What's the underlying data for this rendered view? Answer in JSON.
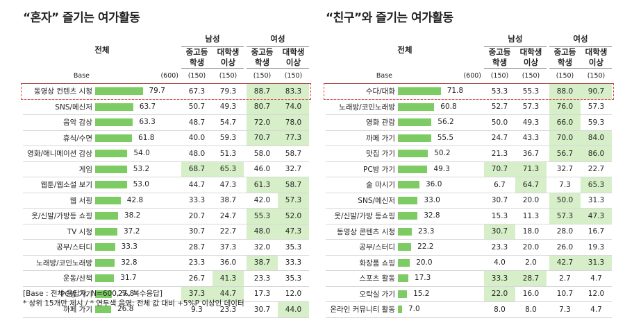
{
  "chart_data": [
    {
      "type": "table",
      "title": "“혼자” 즐기는 여가활동",
      "whole_label": "전체",
      "groups": [
        {
          "name": "남성",
          "columns": [
            "중고등\n학생",
            "대학생\n이상"
          ]
        },
        {
          "name": "여성",
          "columns": [
            "중고등\n학생",
            "대학생\n이상"
          ]
        }
      ],
      "base": {
        "label": "Base",
        "total": "(600)",
        "subs": [
          "(150)",
          "(150)",
          "(150)",
          "(150)"
        ]
      },
      "rows": [
        {
          "label": "동영상 컨텐츠 시청",
          "total": 79.7,
          "values": [
            67.3,
            79.3,
            88.7,
            83.3
          ],
          "hl": [
            false,
            false,
            true,
            true
          ]
        },
        {
          "label": "SNS/메신저",
          "total": 63.7,
          "values": [
            50.7,
            49.3,
            80.7,
            74.0
          ],
          "hl": [
            false,
            false,
            true,
            true
          ]
        },
        {
          "label": "음악 감상",
          "total": 63.3,
          "values": [
            48.7,
            54.7,
            72.0,
            78.0
          ],
          "hl": [
            false,
            false,
            true,
            true
          ]
        },
        {
          "label": "휴식/수면",
          "total": 61.8,
          "values": [
            40.0,
            59.3,
            70.7,
            77.3
          ],
          "hl": [
            false,
            false,
            true,
            true
          ]
        },
        {
          "label": "영화/애니메이션 감상",
          "total": 54.0,
          "values": [
            48.0,
            51.3,
            58.0,
            58.7
          ],
          "hl": [
            false,
            false,
            false,
            false
          ]
        },
        {
          "label": "게임",
          "total": 53.2,
          "values": [
            68.7,
            65.3,
            46.0,
            32.7
          ],
          "hl": [
            true,
            true,
            false,
            false
          ]
        },
        {
          "label": "웹툰/웹소설 보기",
          "total": 53.0,
          "values": [
            44.7,
            47.3,
            61.3,
            58.7
          ],
          "hl": [
            false,
            false,
            true,
            true
          ]
        },
        {
          "label": "웹 서핑",
          "total": 42.8,
          "values": [
            33.3,
            38.7,
            42.0,
            57.3
          ],
          "hl": [
            false,
            false,
            false,
            true
          ]
        },
        {
          "label": "옷/신발/가방등 쇼핑",
          "total": 38.2,
          "values": [
            20.7,
            24.7,
            55.3,
            52.0
          ],
          "hl": [
            false,
            false,
            true,
            true
          ]
        },
        {
          "label": "TV 시청",
          "total": 37.2,
          "values": [
            30.7,
            22.7,
            48.0,
            47.3
          ],
          "hl": [
            false,
            false,
            true,
            true
          ]
        },
        {
          "label": "공부/스터디",
          "total": 33.3,
          "values": [
            28.7,
            37.3,
            32.0,
            35.3
          ],
          "hl": [
            false,
            false,
            false,
            false
          ]
        },
        {
          "label": "노래방/코인노래방",
          "total": 32.8,
          "values": [
            23.3,
            36.0,
            38.7,
            33.3
          ],
          "hl": [
            false,
            false,
            true,
            false
          ]
        },
        {
          "label": "운동/산책",
          "total": 31.7,
          "values": [
            26.7,
            41.3,
            23.3,
            35.3
          ],
          "hl": [
            false,
            true,
            false,
            false
          ]
        },
        {
          "label": "PC방 가기",
          "total": 27.8,
          "values": [
            37.3,
            44.7,
            17.3,
            12.0
          ],
          "hl": [
            true,
            true,
            false,
            false
          ]
        },
        {
          "label": "까페 가기",
          "total": 26.8,
          "values": [
            9.3,
            23.3,
            30.7,
            44.0
          ],
          "hl": [
            false,
            false,
            false,
            true
          ]
        }
      ]
    },
    {
      "type": "table",
      "title": "“친구”와 즐기는 여가활동",
      "whole_label": "전체",
      "groups": [
        {
          "name": "남성",
          "columns": [
            "중고등\n학생",
            "대학생\n이상"
          ]
        },
        {
          "name": "여성",
          "columns": [
            "중고등\n학생",
            "대학생\n이상"
          ]
        }
      ],
      "base": {
        "label": "Base",
        "total": "(600)",
        "subs": [
          "(150)",
          "(150)",
          "(150)",
          "(150)"
        ]
      },
      "rows": [
        {
          "label": "수다/대화",
          "total": 71.8,
          "values": [
            53.3,
            55.3,
            88.0,
            90.7
          ],
          "hl": [
            false,
            false,
            true,
            true
          ]
        },
        {
          "label": "노래방/코인노래방",
          "total": 60.8,
          "values": [
            52.7,
            57.3,
            76.0,
            57.3
          ],
          "hl": [
            false,
            false,
            true,
            false
          ]
        },
        {
          "label": "영화 관람",
          "total": 56.2,
          "values": [
            50.0,
            49.3,
            66.0,
            59.3
          ],
          "hl": [
            false,
            false,
            true,
            false
          ]
        },
        {
          "label": "까페 가기",
          "total": 55.5,
          "values": [
            24.7,
            43.3,
            70.0,
            84.0
          ],
          "hl": [
            false,
            false,
            true,
            true
          ]
        },
        {
          "label": "맛집 가기",
          "total": 50.2,
          "values": [
            21.3,
            36.7,
            56.7,
            86.0
          ],
          "hl": [
            false,
            false,
            true,
            true
          ]
        },
        {
          "label": "PC방 가기",
          "total": 49.3,
          "values": [
            70.7,
            71.3,
            32.7,
            22.7
          ],
          "hl": [
            true,
            true,
            false,
            false
          ]
        },
        {
          "label": "술 마시기",
          "total": 36.0,
          "values": [
            6.7,
            64.7,
            7.3,
            65.3
          ],
          "hl": [
            false,
            true,
            false,
            true
          ]
        },
        {
          "label": "SNS/메신저",
          "total": 33.0,
          "values": [
            30.7,
            20.0,
            50.0,
            31.3
          ],
          "hl": [
            false,
            false,
            true,
            false
          ]
        },
        {
          "label": "옷/신발/가방 등쇼핑",
          "total": 32.8,
          "values": [
            15.3,
            11.3,
            57.3,
            47.3
          ],
          "hl": [
            false,
            false,
            true,
            true
          ]
        },
        {
          "label": "동영상 콘텐츠 시청",
          "total": 23.3,
          "values": [
            30.7,
            18.0,
            28.0,
            16.7
          ],
          "hl": [
            true,
            false,
            false,
            false
          ]
        },
        {
          "label": "공부/스터디",
          "total": 22.2,
          "values": [
            23.3,
            20.0,
            26.0,
            19.3
          ],
          "hl": [
            false,
            false,
            false,
            false
          ]
        },
        {
          "label": "화장품 쇼핑",
          "total": 20.0,
          "values": [
            4.0,
            2.0,
            42.7,
            31.3
          ],
          "hl": [
            false,
            false,
            true,
            true
          ]
        },
        {
          "label": "스포츠 활동",
          "total": 17.3,
          "values": [
            33.3,
            28.7,
            2.7,
            4.7
          ],
          "hl": [
            true,
            true,
            false,
            false
          ]
        },
        {
          "label": "오락실 가기",
          "total": 15.2,
          "values": [
            22.0,
            16.0,
            10.7,
            12.0
          ],
          "hl": [
            true,
            false,
            false,
            false
          ]
        },
        {
          "label": "온라인 커뮤니티 활동",
          "total": 7.0,
          "values": [
            8.0,
            8.0,
            7.3,
            4.7
          ],
          "hl": [
            false,
            false,
            false,
            false
          ]
        }
      ]
    }
  ],
  "notes": {
    "line1": "[Base : 전체 응답자, N=600, %, 복수응답]",
    "line2": "* 상위 15개만 제시 / * 연두색 음영: 전체 값 대비 +5%P 이상인 데이터"
  },
  "colors": {
    "bar": "#7dcb63",
    "highlight": "#d6efc8",
    "dashed_box": "#d9433a"
  }
}
